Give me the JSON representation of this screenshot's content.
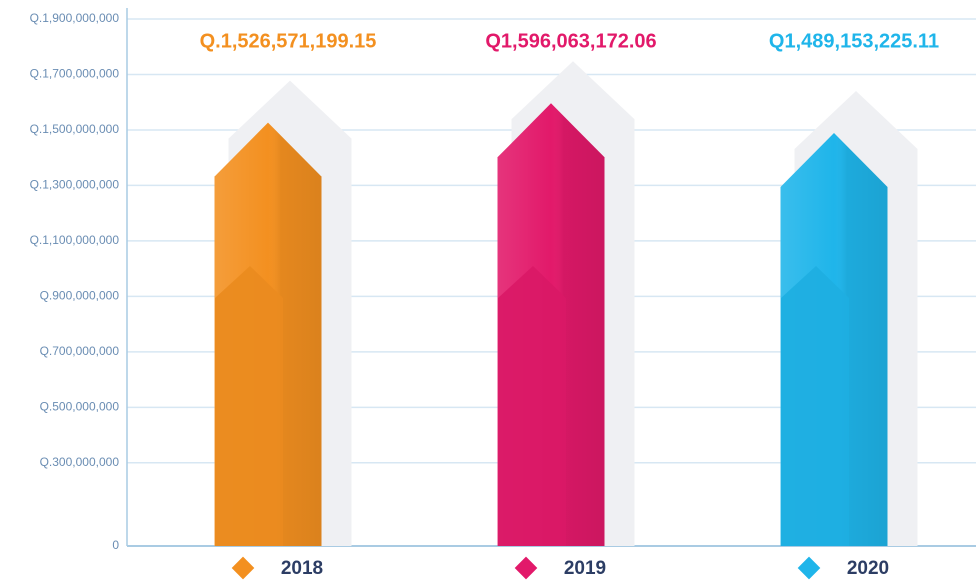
{
  "chart_data": {
    "type": "bar",
    "categories": [
      "2018",
      "2019",
      "2020"
    ],
    "values": [
      1526571199.15,
      1596063172.06,
      1489153225.11
    ],
    "value_labels": [
      "Q.1,526,571,199.15",
      "Q1,596,063,172.06",
      "Q1,489,153,225.11"
    ],
    "colors": [
      "#f39020",
      "#e2196a",
      "#1fb5ea"
    ],
    "ylim": [
      0,
      1900000000
    ],
    "yticks": [
      {
        "value": 1900000000,
        "label": "Q.1,900,000,000"
      },
      {
        "value": 1700000000,
        "label": "Q.1,700,000,000"
      },
      {
        "value": 1500000000,
        "label": "Q.1,500,000,000"
      },
      {
        "value": 1300000000,
        "label": "Q.1,300,000,000"
      },
      {
        "value": 1100000000,
        "label": "Q.1,100,000,000"
      },
      {
        "value": 900000000,
        "label": "Q.900,000,000"
      },
      {
        "value": 700000000,
        "label": "Q.700,000,000"
      },
      {
        "value": 500000000,
        "label": "Q.500,000,000"
      },
      {
        "value": 300000000,
        "label": "Q.300,000,000"
      },
      0
    ],
    "grid": true
  }
}
